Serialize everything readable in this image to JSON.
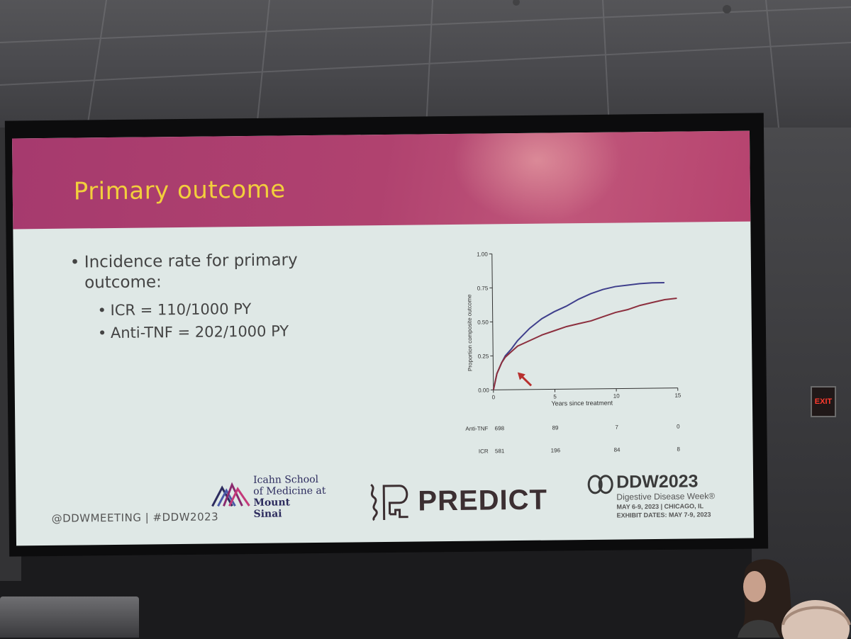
{
  "slide": {
    "title": "Primary outcome",
    "bullets": [
      {
        "text": "Incidence rate for primary outcome:"
      },
      {
        "text": "ICR = 110/1000 PY"
      },
      {
        "text": "Anti-TNF = 202/1000 PY"
      }
    ],
    "bullet_glyph": "•",
    "footer_handle": "@DDWMEETING  |  #DDW2023",
    "logos": {
      "icahn_lines": [
        "Icahn School",
        "of Medicine at",
        "Mount",
        "Sinai"
      ],
      "predict": "PREDICT",
      "ddw_title": "DDW2023",
      "ddw_subtitle": "Digestive Disease Week®",
      "ddw_dates": "MAY 6-9, 2023 | CHICAGO, IL",
      "ddw_exhibit": "EXHIBIT DATES: MAY 7-9, 2023"
    },
    "colors": {
      "header": "#b0426f",
      "title": "#f2cf3c",
      "slide_background": "#dfe8e6",
      "anti_tnf_line": "#3f3f8c",
      "icr_line": "#8c2f3e"
    }
  },
  "room": {
    "exit_sign": "EXIT"
  },
  "chart_data": {
    "type": "line",
    "xlabel": "Years since treatment",
    "ylabel": "Proportion composite outcome",
    "xlim": [
      0,
      15
    ],
    "ylim": [
      0,
      1
    ],
    "x_ticks": [
      "0",
      "5",
      "10",
      "15"
    ],
    "y_ticks": [
      "0.00",
      "0.25",
      "0.50",
      "0.75",
      "1.00"
    ],
    "series": [
      {
        "name": "Anti-TNF",
        "x": [
          0,
          0.3,
          0.7,
          1,
          1.5,
          2,
          3,
          4,
          5,
          6,
          7,
          8,
          9,
          10,
          11,
          12,
          13,
          14
        ],
        "y": [
          0,
          0.12,
          0.2,
          0.25,
          0.3,
          0.36,
          0.45,
          0.52,
          0.57,
          0.61,
          0.66,
          0.7,
          0.73,
          0.75,
          0.76,
          0.77,
          0.775,
          0.775
        ]
      },
      {
        "name": "ICR",
        "x": [
          0,
          0.3,
          0.7,
          1,
          1.5,
          2,
          3,
          4,
          5,
          6,
          7,
          8,
          9,
          10,
          11,
          12,
          13,
          14,
          15
        ],
        "y": [
          0,
          0.12,
          0.2,
          0.24,
          0.28,
          0.32,
          0.36,
          0.4,
          0.43,
          0.46,
          0.48,
          0.5,
          0.53,
          0.56,
          0.58,
          0.61,
          0.63,
          0.65,
          0.66
        ]
      }
    ],
    "risk_table": {
      "x": [
        0,
        5,
        10,
        15
      ],
      "rows": [
        {
          "label": "Anti-TNF",
          "values": [
            "698",
            "89",
            "7",
            "0"
          ]
        },
        {
          "label": "ICR",
          "values": [
            "581",
            "196",
            "84",
            "8"
          ]
        }
      ]
    },
    "annotation": "arrow pointing at early divergence"
  }
}
